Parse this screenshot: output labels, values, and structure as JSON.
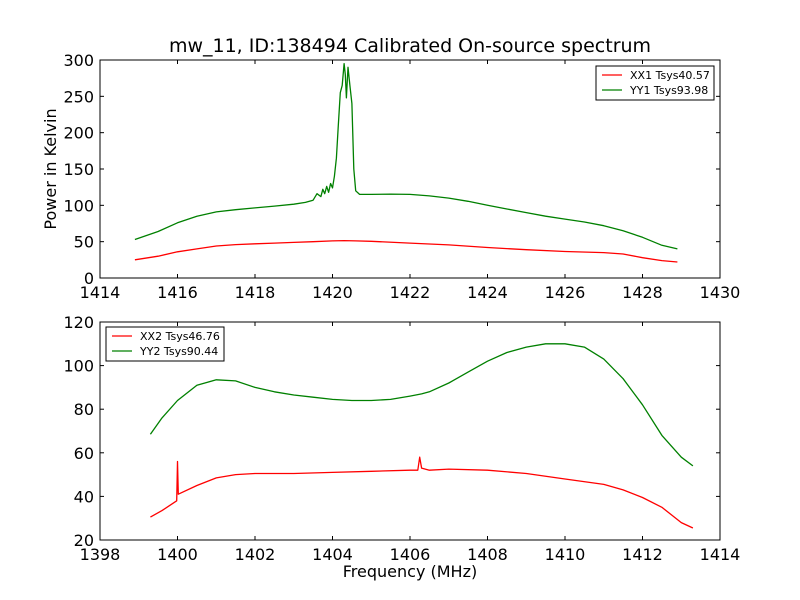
{
  "figure": {
    "title": "mw_11, ID:138494 Calibrated On-source spectrum",
    "background": "#ffffff"
  },
  "chart_data": [
    {
      "type": "line",
      "title": "mw_11, ID:138494 Calibrated On-source spectrum",
      "xlabel": "",
      "ylabel": "Power in Kelvin",
      "xlim": [
        1414,
        1430
      ],
      "ylim": [
        0,
        300
      ],
      "xticks": [
        1414,
        1416,
        1418,
        1420,
        1422,
        1424,
        1426,
        1428,
        1430
      ],
      "yticks": [
        0,
        50,
        100,
        150,
        200,
        250,
        300
      ],
      "grid": false,
      "legend_position": "top-right",
      "series": [
        {
          "name": "XX1 Tsys40.57",
          "color": "#ff0000",
          "points": [
            [
              1414.9,
              25
            ],
            [
              1415.5,
              30
            ],
            [
              1416,
              36
            ],
            [
              1416.5,
              40
            ],
            [
              1417,
              44
            ],
            [
              1417.5,
              46
            ],
            [
              1418,
              47
            ],
            [
              1418.5,
              48
            ],
            [
              1419,
              49
            ],
            [
              1419.5,
              50
            ],
            [
              1420,
              51
            ],
            [
              1420.3,
              51.5
            ],
            [
              1420.6,
              51
            ],
            [
              1421,
              50.5
            ],
            [
              1422,
              48
            ],
            [
              1423,
              45.5
            ],
            [
              1424,
              42
            ],
            [
              1425,
              39
            ],
            [
              1426,
              36.5
            ],
            [
              1427,
              35
            ],
            [
              1427.5,
              33
            ],
            [
              1428,
              28
            ],
            [
              1428.5,
              24
            ],
            [
              1428.9,
              22
            ]
          ]
        },
        {
          "name": "YY1 Tsys93.98",
          "color": "#008000",
          "points": [
            [
              1414.9,
              53
            ],
            [
              1415.5,
              64
            ],
            [
              1416,
              76
            ],
            [
              1416.5,
              85
            ],
            [
              1417,
              91
            ],
            [
              1417.5,
              94
            ],
            [
              1418,
              96.5
            ],
            [
              1418.5,
              99
            ],
            [
              1419,
              101.5
            ],
            [
              1419.3,
              104
            ],
            [
              1419.5,
              107
            ],
            [
              1419.6,
              116
            ],
            [
              1419.7,
              112
            ],
            [
              1419.75,
              122
            ],
            [
              1419.8,
              116
            ],
            [
              1419.85,
              126
            ],
            [
              1419.9,
              118
            ],
            [
              1419.95,
              130
            ],
            [
              1420.0,
              124
            ],
            [
              1420.05,
              140
            ],
            [
              1420.1,
              165
            ],
            [
              1420.15,
              210
            ],
            [
              1420.2,
              255
            ],
            [
              1420.25,
              265
            ],
            [
              1420.3,
              295
            ],
            [
              1420.33,
              280
            ],
            [
              1420.36,
              248
            ],
            [
              1420.4,
              290
            ],
            [
              1420.45,
              265
            ],
            [
              1420.5,
              240
            ],
            [
              1420.55,
              150
            ],
            [
              1420.6,
              120
            ],
            [
              1420.7,
              115
            ],
            [
              1421,
              115
            ],
            [
              1421.5,
              115.5
            ],
            [
              1422,
              115
            ],
            [
              1422.5,
              113
            ],
            [
              1423,
              110
            ],
            [
              1423.5,
              105.5
            ],
            [
              1424,
              100
            ],
            [
              1424.5,
              95
            ],
            [
              1425,
              90
            ],
            [
              1425.5,
              85
            ],
            [
              1426,
              81
            ],
            [
              1426.5,
              77
            ],
            [
              1427,
              72
            ],
            [
              1427.5,
              65
            ],
            [
              1428,
              56
            ],
            [
              1428.5,
              45
            ],
            [
              1428.9,
              40
            ]
          ]
        }
      ]
    },
    {
      "type": "line",
      "title": "",
      "xlabel": "Frequency (MHz)",
      "ylabel": "",
      "xlim": [
        1398,
        1414
      ],
      "ylim": [
        20,
        120
      ],
      "xticks": [
        1398,
        1400,
        1402,
        1404,
        1406,
        1408,
        1410,
        1412,
        1414
      ],
      "yticks": [
        20,
        40,
        60,
        80,
        100,
        120
      ],
      "grid": false,
      "legend_position": "top-left",
      "series": [
        {
          "name": "XX2 Tsys46.76",
          "color": "#ff0000",
          "points": [
            [
              1399.3,
              30.5
            ],
            [
              1399.6,
              33.5
            ],
            [
              1399.98,
              38
            ],
            [
              1400.0,
              56
            ],
            [
              1400.02,
              41
            ],
            [
              1400.5,
              45
            ],
            [
              1401,
              48.5
            ],
            [
              1401.5,
              50
            ],
            [
              1402,
              50.5
            ],
            [
              1403,
              50.5
            ],
            [
              1404,
              51
            ],
            [
              1405,
              51.5
            ],
            [
              1406,
              52
            ],
            [
              1406.2,
              52
            ],
            [
              1406.25,
              58
            ],
            [
              1406.3,
              53
            ],
            [
              1406.5,
              52
            ],
            [
              1407,
              52.5
            ],
            [
              1408,
              52
            ],
            [
              1409,
              50.5
            ],
            [
              1410,
              48
            ],
            [
              1411,
              45.5
            ],
            [
              1411.5,
              43
            ],
            [
              1412,
              39.5
            ],
            [
              1412.5,
              35
            ],
            [
              1413,
              28
            ],
            [
              1413.3,
              25.5
            ]
          ]
        },
        {
          "name": "YY2 Tsys90.44",
          "color": "#008000",
          "points": [
            [
              1399.3,
              68.5
            ],
            [
              1399.6,
              76
            ],
            [
              1400,
              84
            ],
            [
              1400.5,
              91
            ],
            [
              1401,
              93.5
            ],
            [
              1401.5,
              93
            ],
            [
              1402,
              90
            ],
            [
              1402.5,
              88
            ],
            [
              1403,
              86.5
            ],
            [
              1403.5,
              85.5
            ],
            [
              1404,
              84.5
            ],
            [
              1404.5,
              84
            ],
            [
              1405,
              84
            ],
            [
              1405.5,
              84.5
            ],
            [
              1406,
              86
            ],
            [
              1406.3,
              87
            ],
            [
              1406.5,
              88
            ],
            [
              1407,
              92
            ],
            [
              1407.5,
              97
            ],
            [
              1408,
              102
            ],
            [
              1408.5,
              106
            ],
            [
              1409,
              108.5
            ],
            [
              1409.5,
              110
            ],
            [
              1410,
              110
            ],
            [
              1410.5,
              108.5
            ],
            [
              1411,
              103
            ],
            [
              1411.5,
              94
            ],
            [
              1412,
              82
            ],
            [
              1412.5,
              68
            ],
            [
              1413,
              58
            ],
            [
              1413.3,
              54
            ]
          ]
        }
      ]
    }
  ]
}
